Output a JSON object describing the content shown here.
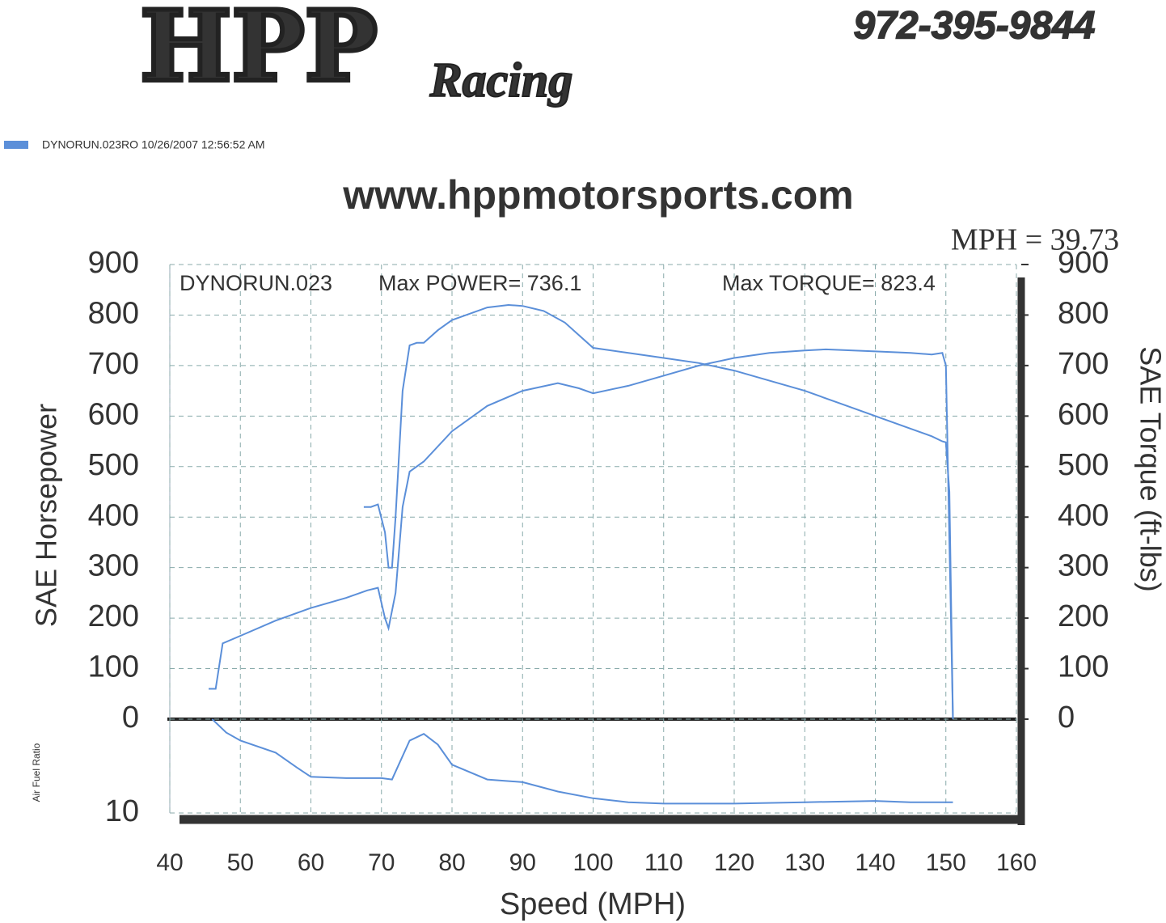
{
  "header": {
    "logo": "HPP",
    "logo_script": "Racing",
    "phone": "972-395-9844",
    "run_info": "DYNORUN.023RO  10/26/2007 12:56:52 AM",
    "website": "www.hppmotorsports.com",
    "speed_readout": "MPH = 39.73"
  },
  "chart_data": [
    {
      "type": "line",
      "annotations": [
        "DYNORUN.023",
        "Max POWER= 736.1",
        "Max TORQUE= 823.4"
      ],
      "xlabel": "Speed (MPH)",
      "ylabel": "SAE Horsepower",
      "y2label": "SAE Torque (ft-lbs)",
      "xlim": [
        40,
        160
      ],
      "xticks": [
        40,
        50,
        60,
        70,
        80,
        90,
        100,
        110,
        120,
        130,
        140,
        150,
        160
      ],
      "ylim": [
        0,
        900
      ],
      "yticks": [
        0,
        100,
        200,
        300,
        400,
        500,
        600,
        700,
        800,
        900
      ],
      "y2lim": [
        0,
        900
      ],
      "y2ticks": [
        0,
        100,
        200,
        300,
        400,
        500,
        600,
        700,
        800,
        900
      ],
      "grid": true,
      "series": [
        {
          "color": "#5b8fd9",
          "x": [
            45.5,
            46.5,
            47.5,
            50,
            55,
            60,
            65,
            68,
            69.5,
            70.5,
            71,
            72,
            73,
            74,
            76,
            80,
            85,
            90,
            95,
            98,
            100,
            105,
            110,
            115,
            120,
            125,
            130,
            133,
            140,
            145,
            148,
            149.5,
            150,
            151
          ],
          "values": [
            60,
            60,
            150,
            165,
            195,
            220,
            240,
            255,
            260,
            200,
            180,
            250,
            420,
            490,
            510,
            570,
            620,
            650,
            665,
            655,
            645,
            660,
            680,
            700,
            715,
            725,
            730,
            732,
            728,
            725,
            722,
            725,
            700,
            0
          ]
        },
        {
          "color": "#5b8fd9",
          "axis": "y2",
          "x": [
            67.5,
            68.5,
            69.5,
            70.5,
            71,
            71.5,
            72,
            73,
            74,
            75,
            76,
            78,
            80,
            85,
            88,
            90,
            93,
            96,
            98,
            100,
            105,
            110,
            115,
            120,
            125,
            130,
            135,
            140,
            145,
            148,
            149.5,
            150,
            150.5,
            151
          ],
          "values": [
            420,
            420,
            425,
            370,
            300,
            300,
            400,
            650,
            740,
            745,
            745,
            770,
            790,
            815,
            820,
            818,
            808,
            785,
            760,
            735,
            725,
            715,
            705,
            690,
            670,
            650,
            625,
            600,
            575,
            560,
            550,
            548,
            450,
            0
          ]
        }
      ]
    },
    {
      "type": "line",
      "ylabel": "Air Fuel Ratio",
      "xlim": [
        40,
        160
      ],
      "ylim": [
        10,
        17
      ],
      "yticks": [
        10
      ],
      "series": [
        {
          "color": "#5b8fd9",
          "x": [
            46,
            48,
            50,
            55,
            58,
            60,
            65,
            70,
            71.5,
            74,
            76,
            78,
            80,
            85,
            90,
            95,
            100,
            105,
            110,
            120,
            130,
            140,
            145,
            150,
            151
          ],
          "values": [
            17,
            16,
            15.4,
            14.5,
            13.4,
            12.7,
            12.6,
            12.6,
            12.5,
            15.4,
            15.9,
            15.1,
            13.6,
            12.5,
            12.3,
            11.6,
            11.1,
            10.8,
            10.7,
            10.7,
            10.8,
            10.9,
            10.8,
            10.8,
            10.8
          ]
        }
      ]
    }
  ]
}
